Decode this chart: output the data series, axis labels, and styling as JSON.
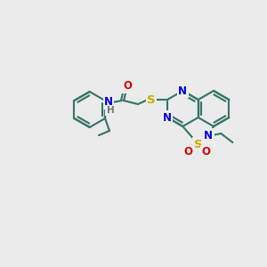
{
  "bg_color": "#ebebeb",
  "bond_color": "#3d7a6e",
  "bond_width": 1.6,
  "atom_colors": {
    "N": "#0000ee",
    "S": "#ccaa00",
    "O": "#dd0000",
    "H": "#777777"
  },
  "font_size": 8.5
}
